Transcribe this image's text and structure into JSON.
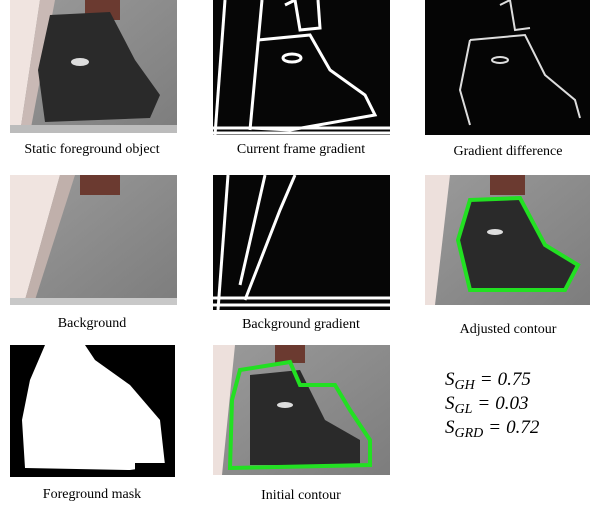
{
  "figure": {
    "panels": [
      {
        "caption": "Static foreground object"
      },
      {
        "caption": "Current frame gradient"
      },
      {
        "caption": "Gradient difference"
      },
      {
        "caption": "Background"
      },
      {
        "caption": "Background gradient"
      },
      {
        "caption": "Adjusted contour"
      },
      {
        "caption": "Foreground mask"
      },
      {
        "caption": "Initial contour"
      }
    ],
    "scores": [
      {
        "symbol": "S",
        "subscript": "GH",
        "relation": "=",
        "value": "0.75"
      },
      {
        "symbol": "S",
        "subscript": "GL",
        "relation": "=",
        "value": "0.03"
      },
      {
        "symbol": "S",
        "subscript": "GRD",
        "relation": "=",
        "value": "0.72"
      }
    ]
  }
}
